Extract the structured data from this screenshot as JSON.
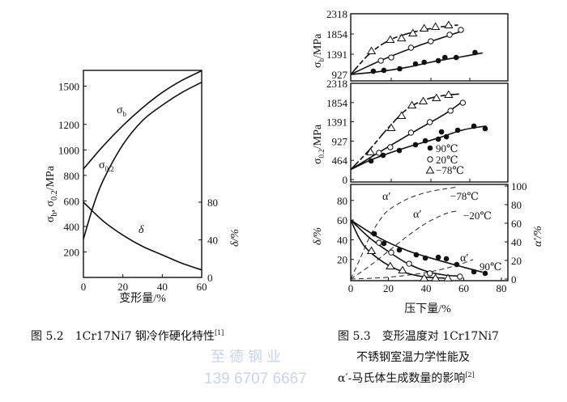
{
  "chart_data": [
    {
      "id": "fig52",
      "type": "line",
      "title": "图 5.2　1Cr17Ni7 钢冷作硬化特性",
      "title_ref": "[1]",
      "xlabel": "变形量/%",
      "ylabel": "σb, σ0.2/MPa",
      "ylabel_parts": {
        "s1": "σ",
        "b": "b",
        "comma": ", σ",
        "sub2": "0.2",
        "unit": "/MPa"
      },
      "y2label": "δ/%",
      "xlim": [
        0,
        60
      ],
      "ylim": [
        0,
        1620
      ],
      "y2lim": [
        0,
        80
      ],
      "xticks": [
        "0",
        "20",
        "40",
        "60"
      ],
      "yticks": [
        "200",
        "400",
        "600",
        "800",
        "1000",
        "1200",
        "1500"
      ],
      "ytick_values": [
        200,
        400,
        600,
        800,
        1000,
        1200,
        1500
      ],
      "y2ticks": [
        "0",
        "40",
        "80"
      ],
      "series": [
        {
          "name": "σb",
          "label_main": "σ",
          "label_sub": "b",
          "axis": "left",
          "points": [
            [
              0,
              850
            ],
            [
              10,
              1030
            ],
            [
              20,
              1190
            ],
            [
              30,
              1330
            ],
            [
              40,
              1450
            ],
            [
              50,
              1545
            ],
            [
              60,
              1620
            ]
          ]
        },
        {
          "name": "σ0.2",
          "label_main": "σ",
          "label_sub": "0.2",
          "axis": "left",
          "points": [
            [
              0,
              300
            ],
            [
              5,
              560
            ],
            [
              10,
              760
            ],
            [
              20,
              1040
            ],
            [
              30,
              1230
            ],
            [
              40,
              1350
            ],
            [
              50,
              1450
            ],
            [
              60,
              1530
            ]
          ]
        },
        {
          "name": "δ",
          "label_main": "δ",
          "label_sub": "",
          "axis": "right",
          "points": [
            [
              0,
              80
            ],
            [
              10,
              60
            ],
            [
              20,
              45
            ],
            [
              30,
              33
            ],
            [
              40,
              24
            ],
            [
              50,
              15
            ],
            [
              60,
              8
            ]
          ]
        }
      ]
    },
    {
      "id": "fig53_top",
      "type": "scatter",
      "ylabel_main": "σ",
      "ylabel_sub": "b",
      "ylabel_unit": "/MPa",
      "ylim": [
        927,
        2318
      ],
      "yticks": [
        "927",
        "1391",
        "1854",
        "2318"
      ],
      "ytick_values": [
        927,
        1391,
        1854,
        2318
      ],
      "series": [
        {
          "name": "90℃",
          "marker": "filled-circle",
          "points": [
            [
              12,
              1000
            ],
            [
              17.6,
              1020
            ],
            [
              26,
              1057
            ],
            [
              34.4,
              1168
            ],
            [
              39,
              1205
            ],
            [
              46.5,
              1242
            ],
            [
              50,
              1316
            ],
            [
              56,
              1316
            ],
            [
              66,
              1428
            ]
          ],
          "fit": [
            [
              0,
              927
            ],
            [
              15,
              990
            ],
            [
              30,
              1090
            ],
            [
              45,
              1230
            ],
            [
              60,
              1340
            ],
            [
              70,
              1420
            ]
          ],
          "fit_dashed": false
        },
        {
          "name": "20℃",
          "marker": "open-circle",
          "points": [
            [
              16,
              1242
            ],
            [
              21.5,
              1316
            ],
            [
              32,
              1539
            ],
            [
              42.5,
              1687
            ],
            [
              52.5,
              1836
            ],
            [
              58.5,
              1947
            ]
          ],
          "fit": [
            [
              0,
              927
            ],
            [
              10,
              1130
            ],
            [
              20,
              1320
            ],
            [
              35,
              1570
            ],
            [
              50,
              1790
            ],
            [
              59,
              1920
            ]
          ],
          "fit_dashed": false
        },
        {
          "name": "-78℃",
          "marker": "triangle",
          "points": [
            [
              11,
              1465
            ],
            [
              21,
              1725
            ],
            [
              27,
              1760
            ],
            [
              33,
              1873
            ],
            [
              39,
              1984
            ],
            [
              45,
              2021
            ],
            [
              52,
              2058
            ]
          ],
          "fit": [
            [
              0,
              927
            ],
            [
              10,
              1400
            ],
            [
              20,
              1700
            ],
            [
              30,
              1860
            ],
            [
              40,
              1960
            ],
            [
              50,
              2030
            ],
            [
              57,
              2060
            ]
          ],
          "fit_dashed": true
        }
      ]
    },
    {
      "id": "fig53_mid",
      "type": "scatter",
      "ylabel_main": "σ",
      "ylabel_sub": "0.2",
      "ylabel_unit": "/MPa",
      "ylim": [
        0,
        2318
      ],
      "yticks": [
        "0",
        "464",
        "927",
        "1391",
        "1854",
        "2318"
      ],
      "ytick_values": [
        0,
        464,
        927,
        1391,
        1854,
        2318
      ],
      "legend": [
        {
          "marker": "filled-circle",
          "label": "90℃"
        },
        {
          "marker": "open-circle",
          "label": "20℃"
        },
        {
          "marker": "triangle",
          "label": "−78℃"
        }
      ],
      "series": [
        {
          "name": "90℃",
          "marker": "filled-circle",
          "points": [
            [
              10.8,
              448
            ],
            [
              17.2,
              584
            ],
            [
              25.8,
              701
            ],
            [
              34.4,
              838
            ],
            [
              39.6,
              935
            ],
            [
              46.5,
              974
            ],
            [
              48.2,
              1149
            ],
            [
              50.8,
              1032
            ],
            [
              56.8,
              1188
            ],
            [
              65.4,
              1286
            ],
            [
              71.4,
              1227
            ]
          ],
          "fit": [
            [
              0,
              240
            ],
            [
              10,
              460
            ],
            [
              20,
              630
            ],
            [
              30,
              780
            ],
            [
              45,
              980
            ],
            [
              60,
              1200
            ],
            [
              72,
              1290
            ]
          ],
          "fit_dashed": false
        },
        {
          "name": "20℃",
          "marker": "open-circle",
          "points": [
            [
              15,
              643
            ],
            [
              21,
              779
            ],
            [
              32,
              1130
            ],
            [
              42,
              1383
            ],
            [
              53,
              1656
            ],
            [
              59.5,
              1850
            ]
          ],
          "fit": [
            [
              0,
              240
            ],
            [
              10,
              520
            ],
            [
              20,
              790
            ],
            [
              35,
              1190
            ],
            [
              50,
              1580
            ],
            [
              60,
              1900
            ]
          ],
          "fit_dashed": false
        },
        {
          "name": "-78℃",
          "marker": "triangle",
          "points": [
            [
              10.5,
              662
            ],
            [
              21.5,
              1247
            ],
            [
              27,
              1539
            ],
            [
              32.5,
              1792
            ],
            [
              38.5,
              1890
            ],
            [
              45.5,
              1968
            ],
            [
              52,
              2045
            ]
          ],
          "fit": [
            [
              0,
              240
            ],
            [
              10,
              720
            ],
            [
              20,
              1250
            ],
            [
              30,
              1700
            ],
            [
              40,
              1930
            ],
            [
              50,
              2030
            ],
            [
              58,
              2060
            ]
          ],
          "fit_dashed": true
        }
      ]
    },
    {
      "id": "fig53_bottom",
      "type": "scatter",
      "xlabel": "压下量/%",
      "ylabel": "δ/%",
      "y2label": "α′/%",
      "xlim": [
        0,
        83
      ],
      "ylim": [
        0,
        95
      ],
      "y2lim": [
        0,
        100
      ],
      "xticks": [
        "0",
        "20",
        "40",
        "60",
        "80"
      ],
      "yticks": [
        "20",
        "40",
        "60",
        "80"
      ],
      "y2ticks": [
        "0",
        "20",
        "40",
        "60",
        "80",
        "100"
      ],
      "annotations": [
        "α′",
        "α′",
        "α′",
        "−78℃",
        "−20℃",
        "90℃"
      ],
      "delta_series": [
        {
          "name": "90℃",
          "marker": "filled-circle",
          "points": [
            [
              12.5,
              46
            ],
            [
              17.6,
              36.2
            ],
            [
              25.8,
              29.6
            ],
            [
              34.8,
              24.7
            ],
            [
              39.6,
              21.4
            ],
            [
              46.5,
              22.2
            ],
            [
              50.8,
              20.6
            ],
            [
              56.3,
              14.8
            ],
            [
              65.4,
              7.4
            ],
            [
              71.4,
              5.8
            ]
          ],
          "fit": [
            [
              0,
              60
            ],
            [
              15,
              42
            ],
            [
              30,
              29
            ],
            [
              45,
              20
            ],
            [
              60,
              12
            ],
            [
              70,
              7
            ]
          ]
        },
        {
          "name": "20℃",
          "marker": "open-circle",
          "points": [
            [
              15,
              37
            ],
            [
              21.5,
              27
            ],
            [
              31,
              15.6
            ],
            [
              42,
              5.8
            ],
            [
              58,
              2.5
            ]
          ],
          "fit": [
            [
              0,
              60
            ],
            [
              10,
              42
            ],
            [
              20,
              28
            ],
            [
              30,
              16
            ],
            [
              40,
              8
            ],
            [
              50,
              4
            ],
            [
              58,
              3
            ]
          ]
        },
        {
          "name": "-78℃",
          "marker": "triangle",
          "points": [
            [
              11,
              28.8
            ],
            [
              21,
              13.2
            ],
            [
              27.5,
              9
            ],
            [
              39,
              1
            ],
            [
              45,
              1
            ],
            [
              51.6,
              1
            ]
          ],
          "fit": [
            [
              0,
              60
            ],
            [
              5,
              40
            ],
            [
              10,
              28
            ],
            [
              20,
              14
            ],
            [
              30,
              6
            ],
            [
              40,
              2
            ],
            [
              50,
              1
            ]
          ]
        }
      ],
      "alpha_series": [
        {
          "name": "−78℃",
          "points": [
            [
              0,
              0
            ],
            [
              5,
              22
            ],
            [
              10,
              45
            ],
            [
              15,
              62
            ],
            [
              20,
              74
            ],
            [
              30,
              86
            ],
            [
              40,
              93
            ],
            [
              50,
              97
            ],
            [
              57,
              99
            ]
          ]
        },
        {
          "name": "−20℃",
          "points": [
            [
              0,
              0
            ],
            [
              10,
              14
            ],
            [
              20,
              30
            ],
            [
              30,
              46
            ],
            [
              40,
              60
            ],
            [
              50,
              70
            ],
            [
              56,
              73
            ]
          ]
        },
        {
          "name": "90℃",
          "points": [
            [
              0,
              0
            ],
            [
              20,
              2
            ],
            [
              40,
              7
            ],
            [
              55,
              14
            ],
            [
              65,
              21
            ]
          ]
        }
      ]
    }
  ],
  "captions": {
    "right_line1": "图 5.3　变形温度对 1Cr17Ni7",
    "right_line2": "不锈钢室温力学性能及",
    "right_line3": "α′-马氏体生成数量的影响",
    "right_ref": "[2]"
  },
  "watermark": {
    "line1": "至 德 钢 业",
    "line2": "139 6707 6667"
  }
}
